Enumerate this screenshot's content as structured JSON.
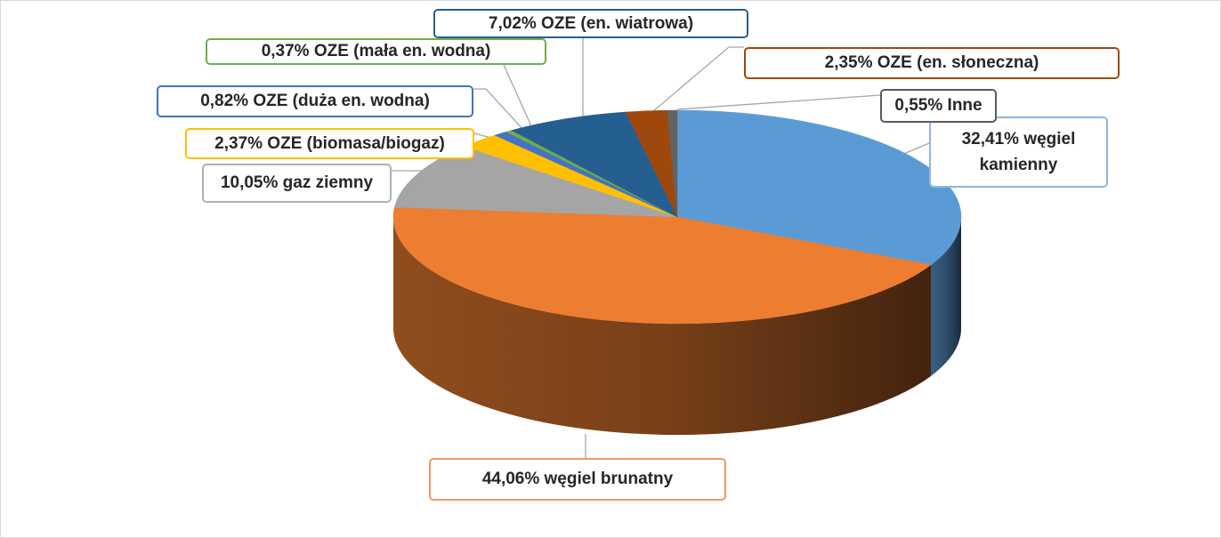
{
  "chart_data": {
    "type": "pie",
    "title": "",
    "slices": [
      {
        "name": "węgiel kamienny",
        "value": 32.41,
        "text": "32,41% węgiel kamienny",
        "color": "#5b9bd5"
      },
      {
        "name": "węgiel brunatny",
        "value": 44.06,
        "text": "44,06% węgiel brunatny",
        "color": "#ed7d31"
      },
      {
        "name": "gaz ziemny",
        "value": 10.05,
        "text": "10,05% gaz ziemny",
        "color": "#a5a5a5"
      },
      {
        "name": "OZE (biomasa/biogaz)",
        "value": 2.37,
        "text": "2,37% OZE (biomasa/biogaz)",
        "color": "#ffc000"
      },
      {
        "name": "OZE (duża en. wodna)",
        "value": 0.82,
        "text": "0,82% OZE (duża en. wodna)",
        "color": "#4472c4"
      },
      {
        "name": "OZE (mała en. wodna)",
        "value": 0.37,
        "text": "0,37% OZE (mała en. wodna)",
        "color": "#70ad47"
      },
      {
        "name": "OZE (en. wiatrowa)",
        "value": 7.02,
        "text": "7,02% OZE (en. wiatrowa)",
        "color": "#255e91"
      },
      {
        "name": "OZE (en. słoneczna)",
        "value": 2.35,
        "text": "2,35% OZE (en. słoneczna)",
        "color": "#9e480e"
      },
      {
        "name": "Inne",
        "value": 0.55,
        "text": "0,55% Inne",
        "color": "#636363"
      }
    ],
    "legend": "none",
    "style": "3d-pie"
  }
}
